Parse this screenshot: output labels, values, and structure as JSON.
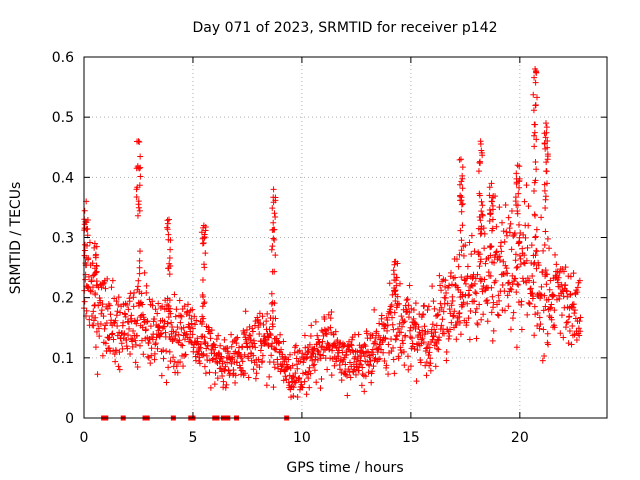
{
  "chart_data": {
    "type": "scatter",
    "title": "Day 071 of 2023, SRMTID for receiver p142",
    "xlabel": "GPS time / hours",
    "ylabel": "SRMTID / TECUs",
    "xlim": [
      0,
      24
    ],
    "ylim": [
      0,
      0.6
    ],
    "xticks": [
      0,
      5,
      10,
      15,
      20
    ],
    "xtick_labels": [
      "0",
      "5",
      "10",
      "15",
      "20"
    ],
    "yticks": [
      0,
      0.1,
      0.2,
      0.3,
      0.4,
      0.5,
      0.6
    ],
    "ytick_labels": [
      "0",
      "0.1",
      "0.2",
      "0.3",
      "0.4",
      "0.5",
      "0.6"
    ],
    "grid": true,
    "marker": "+",
    "series_color": "#ff0000",
    "x_end": 22.8,
    "baseline": [
      [
        0.0,
        0.22
      ],
      [
        0.5,
        0.19
      ],
      [
        1.0,
        0.17
      ],
      [
        1.5,
        0.15
      ],
      [
        2.0,
        0.15
      ],
      [
        2.5,
        0.16
      ],
      [
        3.0,
        0.15
      ],
      [
        3.5,
        0.15
      ],
      [
        4.0,
        0.14
      ],
      [
        4.5,
        0.14
      ],
      [
        5.0,
        0.13
      ],
      [
        5.5,
        0.12
      ],
      [
        6.0,
        0.1
      ],
      [
        6.5,
        0.09
      ],
      [
        7.0,
        0.1
      ],
      [
        7.5,
        0.12
      ],
      [
        8.0,
        0.13
      ],
      [
        8.5,
        0.13
      ],
      [
        9.0,
        0.1
      ],
      [
        9.5,
        0.07
      ],
      [
        10.0,
        0.09
      ],
      [
        10.5,
        0.11
      ],
      [
        11.0,
        0.12
      ],
      [
        11.5,
        0.12
      ],
      [
        12.0,
        0.1
      ],
      [
        12.5,
        0.1
      ],
      [
        13.0,
        0.1
      ],
      [
        13.5,
        0.12
      ],
      [
        14.0,
        0.15
      ],
      [
        14.5,
        0.16
      ],
      [
        15.0,
        0.15
      ],
      [
        15.5,
        0.14
      ],
      [
        16.0,
        0.14
      ],
      [
        16.5,
        0.16
      ],
      [
        17.0,
        0.18
      ],
      [
        17.5,
        0.21
      ],
      [
        18.0,
        0.23
      ],
      [
        18.5,
        0.25
      ],
      [
        19.0,
        0.24
      ],
      [
        19.5,
        0.24
      ],
      [
        20.0,
        0.25
      ],
      [
        20.5,
        0.23
      ],
      [
        21.0,
        0.22
      ],
      [
        21.5,
        0.2
      ],
      [
        22.0,
        0.19
      ],
      [
        22.5,
        0.18
      ],
      [
        22.8,
        0.17
      ]
    ],
    "spikes": [
      {
        "x": 0.1,
        "y": 0.36
      },
      {
        "x": 0.5,
        "y": 0.29
      },
      {
        "x": 2.5,
        "y": 0.46
      },
      {
        "x": 3.9,
        "y": 0.33
      },
      {
        "x": 5.5,
        "y": 0.32
      },
      {
        "x": 8.7,
        "y": 0.38
      },
      {
        "x": 14.3,
        "y": 0.26
      },
      {
        "x": 17.3,
        "y": 0.43
      },
      {
        "x": 18.2,
        "y": 0.46
      },
      {
        "x": 18.7,
        "y": 0.39
      },
      {
        "x": 19.9,
        "y": 0.42
      },
      {
        "x": 20.7,
        "y": 0.58
      },
      {
        "x": 21.2,
        "y": 0.49
      }
    ],
    "zero_markers_x": [
      0.9,
      1.0,
      1.8,
      2.8,
      2.9,
      4.1,
      4.9,
      5.0,
      6.0,
      6.1,
      6.4,
      6.6,
      7.0,
      9.3
    ]
  }
}
